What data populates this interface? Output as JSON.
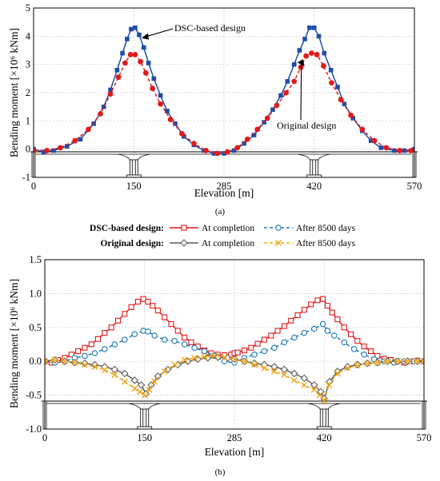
{
  "chart_data": [
    {
      "panel_label": "(a)",
      "type": "line",
      "xlabel": "Elevation  [m]",
      "ylabel": "Bending moment [×10⁶ kNm]",
      "xlim": [
        0,
        570
      ],
      "ylim": [
        -1,
        5
      ],
      "xticks": [
        0,
        150,
        285,
        420,
        570
      ],
      "yticks": [
        -1,
        0,
        1,
        2,
        3,
        4,
        5
      ],
      "grid": true,
      "series": [
        {
          "key": "dsc",
          "color": "#1f4ea8",
          "marker": "square",
          "dashed": false,
          "x": [
            0,
            15,
            30,
            50,
            70,
            90,
            105,
            115,
            125,
            133,
            140,
            146,
            152,
            158,
            165,
            172,
            180,
            190,
            200,
            212,
            225,
            240,
            255,
            270,
            285,
            300,
            315,
            330,
            345,
            358,
            370,
            380,
            390,
            398,
            406,
            413,
            420,
            427,
            435,
            445,
            455,
            465,
            478,
            492,
            505,
            520,
            540,
            555,
            570
          ],
          "y": [
            0.0,
            -0.1,
            -0.05,
            0.1,
            0.35,
            0.9,
            1.5,
            2.1,
            2.8,
            3.4,
            3.9,
            4.25,
            4.3,
            4.05,
            3.6,
            3.05,
            2.5,
            1.9,
            1.35,
            0.9,
            0.45,
            0.15,
            -0.05,
            -0.15,
            -0.15,
            -0.05,
            0.2,
            0.5,
            0.95,
            1.4,
            1.9,
            2.4,
            3.0,
            3.5,
            3.9,
            4.3,
            4.3,
            4.0,
            3.4,
            2.8,
            2.2,
            1.6,
            1.1,
            0.65,
            0.3,
            0.05,
            -0.05,
            -0.05,
            0.0
          ]
        },
        {
          "key": "original",
          "color": "#e01b1b",
          "marker": "circle",
          "dashed": true,
          "x": [
            0,
            20,
            40,
            62,
            82,
            100,
            115,
            127,
            137,
            145,
            152,
            160,
            168,
            178,
            190,
            205,
            222,
            240,
            258,
            275,
            290,
            305,
            320,
            335,
            350,
            364,
            378,
            390,
            400,
            408,
            416,
            424,
            434,
            446,
            460,
            475,
            492,
            510,
            528,
            548,
            565
          ],
          "y": [
            -0.05,
            -0.05,
            0.05,
            0.3,
            0.7,
            1.25,
            1.95,
            2.55,
            3.05,
            3.35,
            3.35,
            3.1,
            2.7,
            2.15,
            1.6,
            1.05,
            0.55,
            0.2,
            -0.05,
            -0.15,
            -0.1,
            0.05,
            0.35,
            0.7,
            1.1,
            1.55,
            2.0,
            2.4,
            2.9,
            3.3,
            3.4,
            3.35,
            2.95,
            2.35,
            1.75,
            1.2,
            0.7,
            0.3,
            0.05,
            -0.05,
            -0.05
          ]
        }
      ],
      "annotations": [
        {
          "text": "DSC-based design",
          "target_series": "dsc",
          "target_x": 158
        },
        {
          "text": "Original design",
          "target_series": "original",
          "target_x": 408
        }
      ]
    },
    {
      "panel_label": "(b)",
      "type": "line",
      "xlabel": "Elevation  [m]",
      "ylabel": "Bending moment [×10⁶ kNm]",
      "xlim": [
        0,
        570
      ],
      "ylim": [
        -1.0,
        1.5
      ],
      "xticks": [
        0,
        150,
        285,
        420,
        570
      ],
      "yticks": [
        -1.0,
        -0.5,
        0.0,
        0.5,
        1.0,
        1.5
      ],
      "ytick_labels": [
        "-1.0",
        "-0.5",
        "0.0",
        "0.5",
        "1.0",
        "1.5"
      ],
      "grid": true,
      "legend": {
        "placement": "top",
        "groups": [
          {
            "label": "DSC-based design:",
            "entries": [
              "At completion",
              "After 8500 days"
            ]
          },
          {
            "label": "Original design:",
            "entries": [
              "At completion",
              "After 8500 days"
            ]
          }
        ]
      },
      "series": [
        {
          "name": "At completion",
          "group": "DSC-based design:",
          "color": "#e31a1c",
          "marker": "square-open",
          "dashed": false,
          "x": [
            0,
            10,
            20,
            30,
            40,
            50,
            60,
            70,
            80,
            90,
            100,
            110,
            120,
            130,
            140,
            148,
            155,
            162,
            170,
            180,
            190,
            200,
            210,
            220,
            230,
            240,
            250,
            260,
            270,
            280,
            285,
            290,
            300,
            310,
            320,
            330,
            340,
            350,
            360,
            370,
            380,
            390,
            400,
            410,
            418,
            425,
            432,
            440,
            450,
            460,
            470,
            480,
            490,
            500,
            510,
            520,
            530,
            540,
            550,
            560,
            570
          ],
          "y": [
            0.0,
            -0.02,
            0.02,
            0.05,
            0.1,
            0.15,
            0.2,
            0.25,
            0.33,
            0.42,
            0.5,
            0.6,
            0.7,
            0.8,
            0.88,
            0.92,
            0.88,
            0.82,
            0.75,
            0.65,
            0.55,
            0.45,
            0.35,
            0.28,
            0.22,
            0.16,
            0.12,
            0.1,
            0.09,
            0.1,
            0.12,
            0.13,
            0.16,
            0.2,
            0.26,
            0.32,
            0.38,
            0.45,
            0.52,
            0.6,
            0.68,
            0.76,
            0.84,
            0.9,
            0.92,
            0.82,
            0.72,
            0.62,
            0.5,
            0.4,
            0.3,
            0.22,
            0.15,
            0.08,
            0.04,
            0.02,
            0.0,
            -0.02,
            0.0,
            0.01,
            0.0
          ]
        },
        {
          "name": "After 8500 days",
          "group": "DSC-based design:",
          "color": "#1f78b4",
          "marker": "circle-open",
          "dashed": true,
          "x": [
            0,
            15,
            30,
            45,
            60,
            75,
            90,
            105,
            120,
            135,
            148,
            155,
            165,
            180,
            195,
            210,
            225,
            240,
            255,
            270,
            285,
            300,
            315,
            330,
            345,
            360,
            375,
            390,
            405,
            418,
            425,
            435,
            450,
            465,
            480,
            495,
            510,
            525,
            540,
            555,
            570
          ],
          "y": [
            0.0,
            -0.02,
            0.0,
            0.05,
            0.08,
            0.12,
            0.18,
            0.25,
            0.32,
            0.4,
            0.45,
            0.44,
            0.38,
            0.32,
            0.3,
            0.25,
            0.2,
            0.15,
            0.08,
            0.0,
            -0.02,
            0.05,
            0.1,
            0.15,
            0.2,
            0.28,
            0.35,
            0.42,
            0.48,
            0.55,
            0.45,
            0.38,
            0.28,
            0.18,
            0.1,
            0.03,
            0.0,
            -0.02,
            0.0,
            0.0,
            0.0
          ]
        },
        {
          "name": "At completion",
          "group": "Original design:",
          "color": "#5f5f5f",
          "marker": "diamond-open",
          "dashed": false,
          "x": [
            0,
            15,
            30,
            45,
            60,
            75,
            90,
            105,
            120,
            135,
            145,
            152,
            160,
            170,
            185,
            200,
            215,
            230,
            245,
            260,
            275,
            285,
            300,
            315,
            330,
            345,
            360,
            375,
            390,
            405,
            415,
            420,
            428,
            440,
            455,
            470,
            485,
            500,
            515,
            530,
            545,
            560,
            570
          ],
          "y": [
            0.0,
            0.02,
            0.0,
            -0.02,
            -0.03,
            -0.05,
            -0.08,
            -0.12,
            -0.18,
            -0.28,
            -0.35,
            -0.48,
            -0.35,
            -0.22,
            -0.12,
            -0.05,
            0.0,
            0.03,
            0.05,
            0.06,
            0.05,
            0.03,
            0.0,
            -0.03,
            -0.05,
            -0.08,
            -0.12,
            -0.18,
            -0.25,
            -0.35,
            -0.45,
            -0.55,
            -0.3,
            -0.15,
            -0.08,
            -0.05,
            -0.03,
            -0.02,
            0.0,
            0.0,
            0.0,
            0.0,
            0.0
          ]
        },
        {
          "name": "After 8500 days",
          "group": "Original design:",
          "color": "#f2a515",
          "marker": "x",
          "dashed": true,
          "x": [
            0,
            15,
            30,
            45,
            60,
            75,
            90,
            105,
            120,
            135,
            143,
            150,
            157,
            165,
            180,
            195,
            210,
            225,
            240,
            255,
            270,
            285,
            300,
            315,
            330,
            345,
            360,
            375,
            390,
            405,
            413,
            420,
            427,
            440,
            455,
            470,
            485,
            500,
            515,
            530,
            545,
            560,
            570
          ],
          "y": [
            0.0,
            0.02,
            0.0,
            -0.02,
            -0.05,
            -0.08,
            -0.13,
            -0.2,
            -0.3,
            -0.4,
            -0.45,
            -0.5,
            -0.42,
            -0.3,
            -0.15,
            -0.05,
            0.02,
            0.05,
            0.07,
            0.08,
            0.06,
            0.03,
            0.0,
            -0.05,
            -0.1,
            -0.15,
            -0.2,
            -0.28,
            -0.35,
            -0.42,
            -0.5,
            -0.58,
            -0.35,
            -0.18,
            -0.1,
            -0.06,
            -0.03,
            -0.02,
            0.0,
            0.0,
            0.0,
            0.0,
            0.0
          ]
        }
      ]
    }
  ]
}
